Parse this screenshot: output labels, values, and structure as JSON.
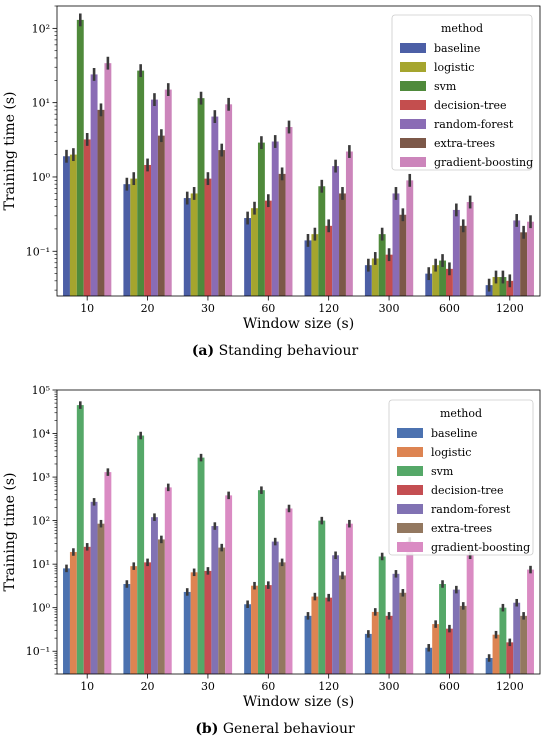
{
  "chart_data": [
    {
      "type": "bar",
      "log_y": true,
      "ylim": [
        0.025,
        200
      ],
      "xlabel": "Window size (s)",
      "ylabel": "Training time (s)",
      "yticks": [
        {
          "v": 0.1,
          "label": "10⁻¹"
        },
        {
          "v": 1,
          "label": "10⁰"
        },
        {
          "v": 10,
          "label": "10¹"
        },
        {
          "v": 100,
          "label": "10²"
        }
      ],
      "categories": [
        "10",
        "20",
        "30",
        "60",
        "120",
        "300",
        "600",
        "1200"
      ],
      "legend": {
        "title": "method",
        "placement": "upper-right"
      },
      "series": [
        {
          "name": "baseline",
          "color": "#4c5fa6",
          "values": [
            1.9,
            0.8,
            0.52,
            0.28,
            0.14,
            0.065,
            0.05,
            0.035
          ]
        },
        {
          "name": "logistic",
          "color": "#a5a52e",
          "values": [
            2.0,
            0.95,
            0.6,
            0.38,
            0.17,
            0.08,
            0.065,
            0.045
          ]
        },
        {
          "name": "svm",
          "color": "#4f8a3b",
          "values": [
            130,
            27,
            11.5,
            2.9,
            0.75,
            0.17,
            0.075,
            0.045
          ]
        },
        {
          "name": "decision-tree",
          "color": "#c44e4e",
          "values": [
            3.2,
            1.45,
            0.95,
            0.48,
            0.22,
            0.09,
            0.058,
            0.04
          ]
        },
        {
          "name": "random-forest",
          "color": "#8a6cb5",
          "values": [
            24,
            11,
            6.5,
            3.0,
            1.4,
            0.6,
            0.36,
            0.26
          ]
        },
        {
          "name": "extra-trees",
          "color": "#7c5848",
          "values": [
            8,
            3.6,
            2.3,
            1.1,
            0.6,
            0.31,
            0.22,
            0.18
          ]
        },
        {
          "name": "gradient-boosting",
          "color": "#cc85bb",
          "values": [
            34,
            15,
            9.5,
            4.7,
            2.2,
            0.9,
            0.46,
            0.25
          ]
        }
      ],
      "caption_letter": "(a)",
      "caption_text": "Standing behaviour"
    },
    {
      "type": "bar",
      "log_y": true,
      "ylim": [
        0.03,
        100000
      ],
      "xlabel": "Window size (s)",
      "ylabel": "Training time (s)",
      "yticks": [
        {
          "v": 0.1,
          "label": "10⁻¹"
        },
        {
          "v": 1,
          "label": "10⁰"
        },
        {
          "v": 10,
          "label": "10¹"
        },
        {
          "v": 100,
          "label": "10²"
        },
        {
          "v": 1000,
          "label": "10³"
        },
        {
          "v": 10000,
          "label": "10⁴"
        },
        {
          "v": 100000,
          "label": "10⁵"
        }
      ],
      "categories": [
        "10",
        "20",
        "30",
        "60",
        "120",
        "300",
        "600",
        "1200"
      ],
      "legend": {
        "title": "method",
        "placement": "upper-right"
      },
      "series": [
        {
          "name": "baseline",
          "color": "#4c72b0",
          "values": [
            8,
            3.5,
            2.3,
            1.2,
            0.65,
            0.25,
            0.12,
            0.07
          ]
        },
        {
          "name": "logistic",
          "color": "#dd8452",
          "values": [
            19,
            9,
            6.5,
            3.2,
            1.8,
            0.8,
            0.42,
            0.24
          ]
        },
        {
          "name": "svm",
          "color": "#55a868",
          "values": [
            45000,
            9000,
            2800,
            500,
            100,
            15,
            3.5,
            1.0
          ]
        },
        {
          "name": "decision-tree",
          "color": "#c44e52",
          "values": [
            25,
            11,
            7,
            3.3,
            1.7,
            0.65,
            0.33,
            0.16
          ]
        },
        {
          "name": "random-forest",
          "color": "#8172b3",
          "values": [
            270,
            120,
            75,
            33,
            16,
            6,
            2.6,
            1.3
          ]
        },
        {
          "name": "extra-trees",
          "color": "#937860",
          "values": [
            85,
            37,
            24,
            11,
            5.5,
            2.2,
            1.1,
            0.65
          ]
        },
        {
          "name": "gradient-boosting",
          "color": "#da8bc3",
          "values": [
            1300,
            580,
            380,
            190,
            85,
            34,
            16,
            7.5
          ]
        }
      ],
      "caption_letter": "(b)",
      "caption_text": "General behaviour"
    }
  ]
}
